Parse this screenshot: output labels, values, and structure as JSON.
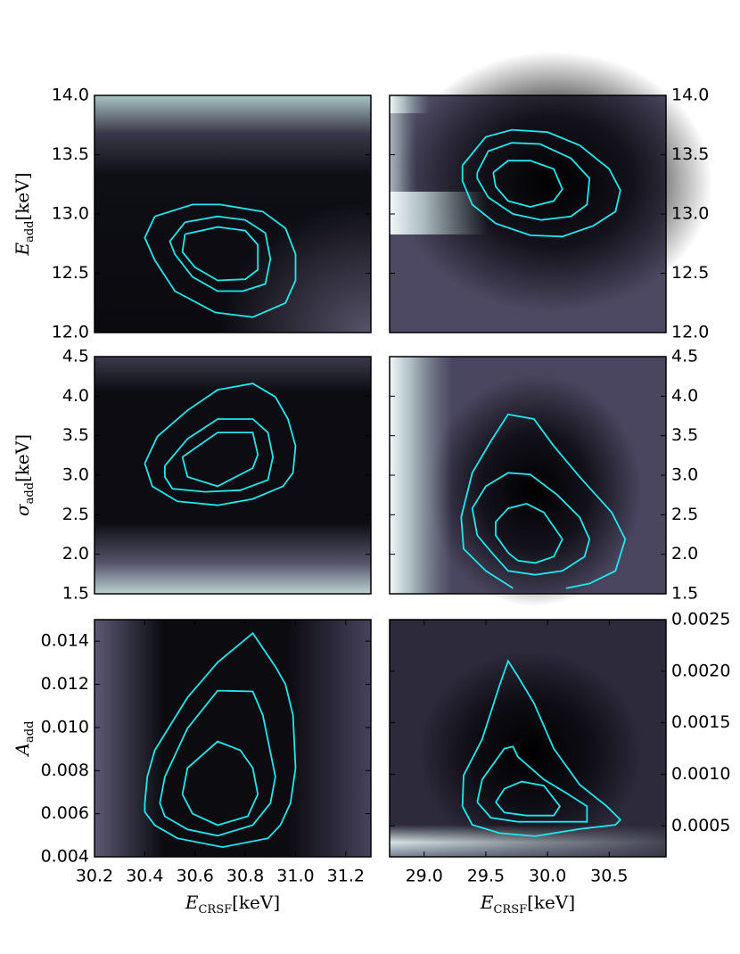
{
  "chart_data": [
    {
      "type": "contour",
      "color": "#1ee8ee",
      "yaxis_side": "left",
      "ylabel": [
        "E",
        "add",
        "[keV]"
      ],
      "xlim": [
        30.2,
        31.3
      ],
      "ylim": [
        12.0,
        14.0
      ],
      "yticks": [
        {
          "value": 12,
          "label": "12.0"
        },
        12.5,
        {
          "value": 13,
          "label": "13.0"
        },
        13.5,
        {
          "value": 14,
          "label": "14.0"
        }
      ],
      "contours": [
        {
          "x": [
            30.44,
            30.59,
            30.7,
            30.87,
            30.96,
            31.0,
            31.0,
            30.96,
            30.83,
            30.68,
            30.52,
            30.44,
            30.4,
            30.44
          ],
          "y": [
            12.98,
            13.08,
            13.08,
            13.02,
            12.88,
            12.66,
            12.44,
            12.25,
            12.13,
            12.17,
            12.35,
            12.61,
            12.8,
            12.98
          ]
        },
        {
          "x": [
            30.56,
            30.69,
            30.8,
            30.88,
            30.9,
            30.88,
            30.79,
            30.69,
            30.59,
            30.52,
            30.5,
            30.56
          ],
          "y": [
            12.93,
            12.98,
            12.95,
            12.84,
            12.62,
            12.41,
            12.35,
            12.35,
            12.47,
            12.66,
            12.77,
            12.93
          ]
        },
        {
          "x": [
            30.56,
            30.69,
            30.8,
            30.85,
            30.85,
            30.8,
            30.69,
            30.6,
            30.55,
            30.56
          ],
          "y": [
            12.83,
            12.89,
            12.86,
            12.74,
            12.53,
            12.45,
            12.44,
            12.55,
            12.68,
            12.83
          ]
        }
      ]
    },
    {
      "type": "contour",
      "color": "#1ee8ee",
      "yaxis_side": "right",
      "xlim": [
        28.72,
        30.96
      ],
      "ylim": [
        12.0,
        14.0
      ],
      "yticks": [
        {
          "value": 12,
          "label": "12.0"
        },
        12.5,
        {
          "value": 13,
          "label": "13.0"
        },
        13.5,
        {
          "value": 14,
          "label": "14.0"
        }
      ],
      "contours": [
        {
          "x": [
            29.31,
            29.5,
            29.71,
            30.0,
            30.26,
            30.5,
            30.59,
            30.55,
            30.37,
            30.12,
            29.86,
            29.58,
            29.39,
            29.31,
            29.31
          ],
          "y": [
            13.41,
            13.65,
            13.71,
            13.69,
            13.58,
            13.38,
            13.2,
            13.02,
            12.9,
            12.81,
            12.82,
            12.92,
            13.08,
            13.28,
            13.41
          ]
        },
        {
          "x": [
            29.43,
            29.52,
            29.71,
            29.94,
            30.19,
            30.34,
            30.32,
            30.19,
            29.95,
            29.72,
            29.52,
            29.43,
            29.43
          ],
          "y": [
            13.35,
            13.53,
            13.6,
            13.59,
            13.47,
            13.3,
            13.08,
            12.98,
            12.95,
            13.0,
            13.14,
            13.3,
            13.35
          ]
        },
        {
          "x": [
            29.56,
            29.68,
            29.86,
            30.05,
            30.12,
            30.05,
            29.86,
            29.68,
            29.58,
            29.56
          ],
          "y": [
            13.35,
            13.45,
            13.45,
            13.38,
            13.21,
            13.11,
            13.06,
            13.11,
            13.23,
            13.35
          ]
        }
      ]
    },
    {
      "type": "contour",
      "color": "#1ee8ee",
      "yaxis_side": "left",
      "ylabel": [
        "σ",
        "add",
        "[keV]"
      ],
      "xlim": [
        30.2,
        31.3
      ],
      "ylim": [
        1.5,
        4.5
      ],
      "yticks": [
        1.5,
        {
          "value": 2,
          "label": "2.0"
        },
        2.5,
        {
          "value": 3,
          "label": "3.0"
        },
        3.5,
        {
          "value": 4,
          "label": "4.0"
        },
        4.5
      ],
      "contours": [
        {
          "x": [
            30.4,
            30.45,
            30.57,
            30.69,
            30.83,
            30.92,
            30.97,
            31.0,
            30.99,
            30.95,
            30.83,
            30.69,
            30.53,
            30.43,
            30.4
          ],
          "y": [
            3.15,
            3.49,
            3.82,
            4.08,
            4.16,
            3.99,
            3.71,
            3.37,
            3.03,
            2.86,
            2.7,
            2.62,
            2.67,
            2.86,
            3.15
          ]
        },
        {
          "x": [
            30.48,
            30.57,
            30.69,
            30.83,
            30.89,
            30.91,
            30.89,
            30.78,
            30.64,
            30.51,
            30.48,
            30.48
          ],
          "y": [
            3.12,
            3.46,
            3.71,
            3.71,
            3.54,
            3.23,
            2.94,
            2.81,
            2.79,
            2.83,
            2.98,
            3.12
          ]
        },
        {
          "x": [
            30.55,
            30.64,
            30.69,
            30.83,
            30.85,
            30.83,
            30.69,
            30.57,
            30.55
          ],
          "y": [
            3.23,
            3.43,
            3.54,
            3.54,
            3.26,
            3.09,
            2.86,
            2.98,
            3.23
          ]
        }
      ]
    },
    {
      "type": "contour",
      "color": "#1ee8ee",
      "yaxis_side": "right",
      "xlim": [
        28.72,
        30.96
      ],
      "ylim": [
        1.5,
        4.5
      ],
      "yticks": [
        1.5,
        {
          "value": 2,
          "label": "2.0"
        },
        2.5,
        {
          "value": 3,
          "label": "3.0"
        },
        3.5,
        {
          "value": 4,
          "label": "4.0"
        },
        4.5
      ],
      "contours": [
        {
          "x": [
            29.72,
            29.5,
            29.32,
            29.3,
            29.39,
            29.54,
            29.68,
            29.89,
            30.05,
            30.26,
            30.52,
            30.63,
            30.55,
            30.34,
            30.15
          ],
          "y": [
            1.57,
            1.79,
            2.07,
            2.47,
            3.03,
            3.43,
            3.77,
            3.71,
            3.37,
            2.98,
            2.53,
            2.19,
            1.79,
            1.63,
            1.57
          ]
        },
        {
          "x": [
            29.56,
            29.43,
            29.39,
            29.5,
            29.68,
            29.86,
            30.08,
            30.26,
            30.34,
            30.3,
            30.12,
            29.9,
            29.68,
            29.56
          ],
          "y": [
            2.0,
            2.24,
            2.58,
            2.86,
            3.03,
            3.01,
            2.75,
            2.47,
            2.19,
            1.97,
            1.79,
            1.74,
            1.79,
            2.0
          ]
        },
        {
          "x": [
            29.68,
            29.58,
            29.58,
            29.68,
            29.83,
            29.97,
            30.12,
            30.05,
            29.9,
            29.76,
            29.68
          ],
          "y": [
            2.02,
            2.24,
            2.41,
            2.58,
            2.64,
            2.53,
            2.19,
            1.97,
            1.89,
            1.92,
            2.02
          ]
        }
      ]
    },
    {
      "type": "contour",
      "color": "#1ee8ee",
      "yaxis_side": "left",
      "ylabel": [
        "A",
        "add",
        ""
      ],
      "xlabel": [
        "E",
        "CRSF",
        "[keV]"
      ],
      "xlim": [
        30.2,
        31.3
      ],
      "ylim": [
        0.004,
        0.015
      ],
      "xticks": [
        30.2,
        30.4,
        30.6,
        30.8,
        {
          "value": 31,
          "label": "31.0"
        },
        31.2
      ],
      "yticks": [
        0.004,
        0.006,
        0.008,
        {
          "value": 0.01,
          "label": "0.010"
        },
        0.012,
        0.014
      ],
      "contours": [
        {
          "x": [
            30.4,
            30.41,
            30.44,
            30.57,
            30.69,
            30.83,
            30.92,
            30.96,
            30.99,
            31.0,
            30.98,
            30.94,
            30.89,
            30.71,
            30.53,
            30.44,
            30.4,
            30.4
          ],
          "y": [
            0.00649,
            0.00771,
            0.00894,
            0.01139,
            0.01302,
            0.01437,
            0.01282,
            0.012,
            0.01057,
            0.00812,
            0.00649,
            0.00547,
            0.00486,
            0.00445,
            0.00486,
            0.00547,
            0.00608,
            0.00649
          ]
        },
        {
          "x": [
            30.46,
            30.48,
            30.57,
            30.69,
            30.83,
            30.87,
            30.92,
            30.9,
            30.83,
            30.69,
            30.57,
            30.48,
            30.46
          ],
          "y": [
            0.00649,
            0.00771,
            0.00996,
            0.01171,
            0.01167,
            0.01057,
            0.00771,
            0.00649,
            0.00547,
            0.00498,
            0.00527,
            0.00588,
            0.00649
          ]
        },
        {
          "x": [
            30.55,
            30.57,
            30.69,
            30.78,
            30.83,
            30.85,
            30.81,
            30.69,
            30.59,
            30.55
          ],
          "y": [
            0.0069,
            0.00812,
            0.00935,
            0.00894,
            0.00812,
            0.0069,
            0.00588,
            0.00547,
            0.006,
            0.0069
          ]
        }
      ]
    },
    {
      "type": "contour",
      "color": "#1ee8ee",
      "yaxis_side": "right",
      "xlabel": [
        "E",
        "CRSF",
        "[keV]"
      ],
      "xlim": [
        28.72,
        30.96
      ],
      "ylim": [
        0.0002,
        0.0025
      ],
      "xticks": [
        {
          "value": 29,
          "label": "29.0"
        },
        29.5,
        {
          "value": 30,
          "label": "30.0"
        },
        30.5
      ],
      "yticks": [
        0.0005,
        {
          "value": 0.001,
          "label": "0.0010"
        },
        0.0015,
        {
          "value": 0.002,
          "label": "0.0020"
        },
        0.0025
      ],
      "contours": [
        {
          "x": [
            29.31,
            29.32,
            29.47,
            29.61,
            29.68,
            29.76,
            29.89,
            30.05,
            30.26,
            30.48,
            30.59,
            30.55,
            30.26,
            29.9,
            29.61,
            29.39,
            29.31
          ],
          "y": [
            0.00069,
            0.00099,
            0.00134,
            0.00186,
            0.0021,
            0.00195,
            0.00169,
            0.00125,
            0.0009,
            0.00069,
            0.00056,
            0.00051,
            0.00047,
            0.0004,
            0.00043,
            0.00051,
            0.00069
          ]
        },
        {
          "x": [
            29.43,
            29.47,
            29.65,
            29.72,
            29.76,
            29.97,
            30.15,
            30.32,
            30.32,
            30.05,
            29.76,
            29.54,
            29.43
          ],
          "y": [
            0.00073,
            0.00095,
            0.00125,
            0.00127,
            0.00117,
            0.00095,
            0.00082,
            0.00069,
            0.00054,
            0.00054,
            0.00054,
            0.00058,
            0.00073
          ]
        },
        {
          "x": [
            29.58,
            29.65,
            29.79,
            29.97,
            30.1,
            30.05,
            29.83,
            29.65,
            29.58
          ],
          "y": [
            0.00073,
            0.00086,
            0.00093,
            0.00089,
            0.00069,
            0.0006,
            0.0006,
            0.00063,
            0.00073
          ]
        }
      ]
    }
  ]
}
